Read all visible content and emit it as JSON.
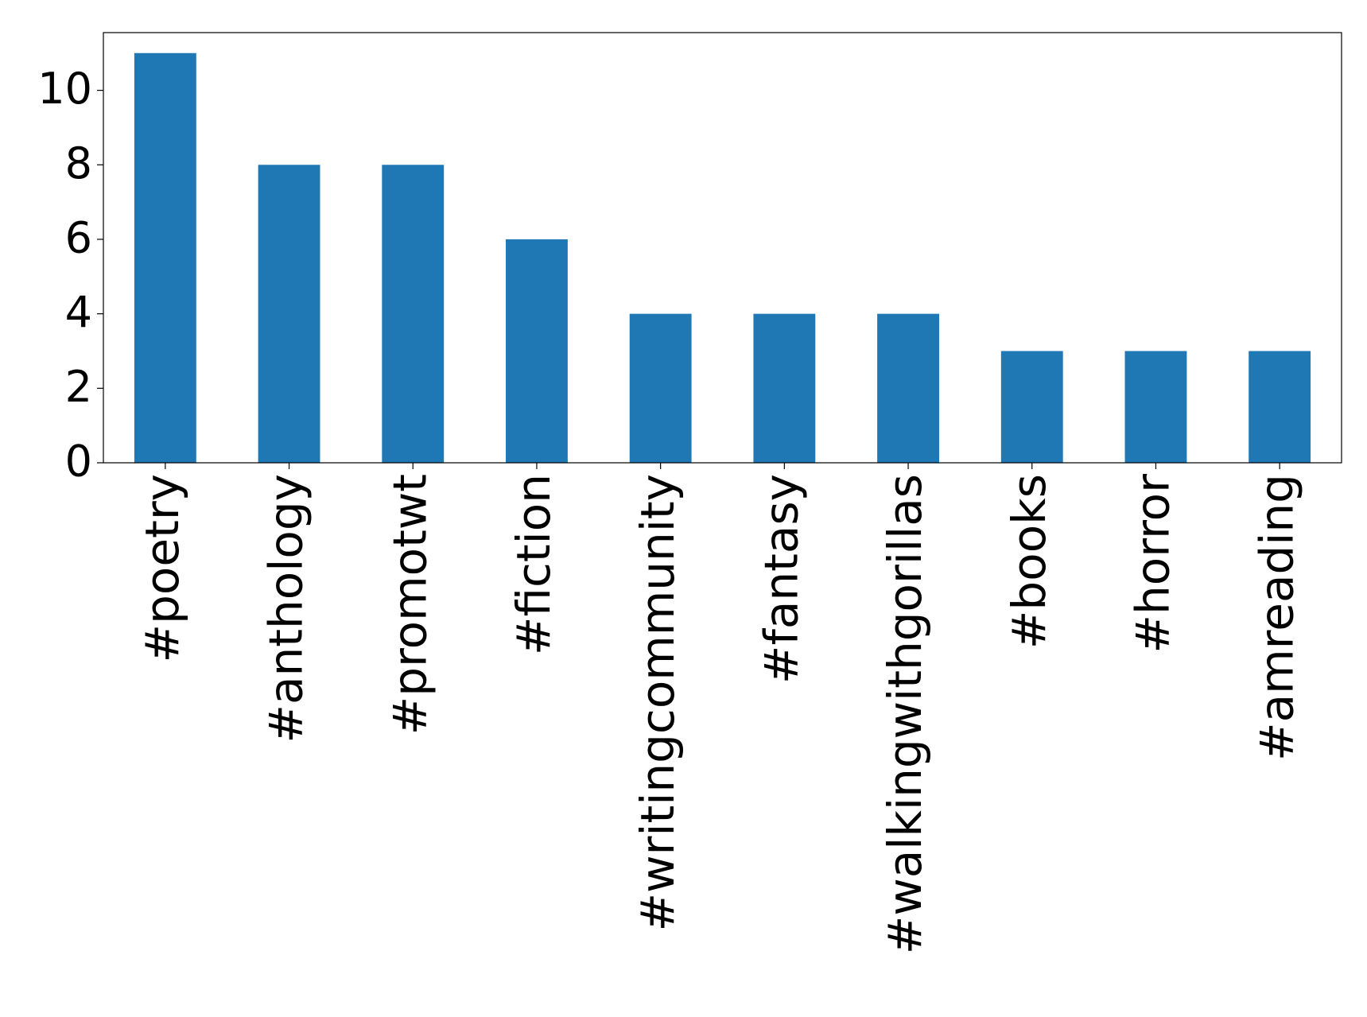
{
  "chart_data": {
    "type": "bar",
    "categories": [
      "#poetry",
      "#anthology",
      "#promotwt",
      "#fiction",
      "#writingcommunity",
      "#fantasy",
      "#walkingwithgorillas",
      "#books",
      "#horror",
      "#amreading"
    ],
    "values": [
      11,
      8,
      8,
      6,
      4,
      4,
      4,
      3,
      3,
      3
    ],
    "color": "#1f77b4",
    "ylim": [
      0,
      11.55
    ],
    "yticks": [
      0,
      2,
      4,
      6,
      8,
      10
    ],
    "grid": false
  }
}
